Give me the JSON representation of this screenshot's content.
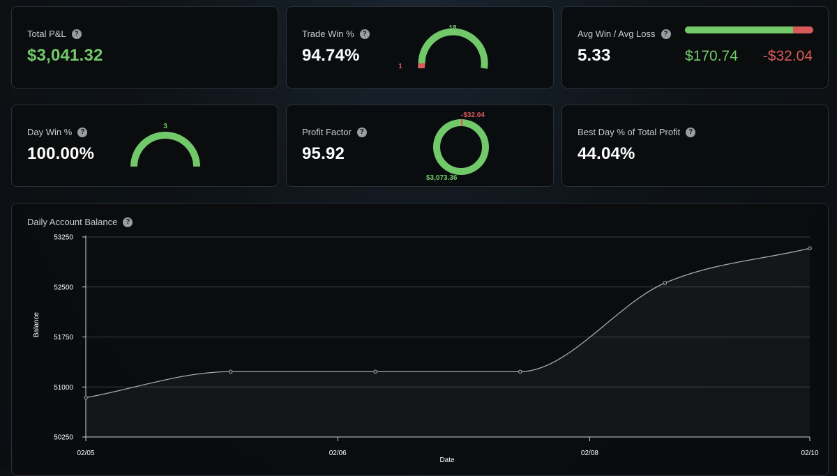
{
  "colors": {
    "green": "#72c96a",
    "red": "#d95a5a",
    "line": "#a8aaad"
  },
  "total_pnl": {
    "label": "Total P&L",
    "value": "$3,041.32"
  },
  "trade_win": {
    "label": "Trade Win %",
    "value": "94.74%",
    "wins": "18",
    "losses": "1",
    "win_fraction": 0.9474
  },
  "avg_win_loss": {
    "label": "Avg Win / Avg Loss",
    "value": "5.33",
    "avg_win": "$170.74",
    "avg_loss": "-$32.04",
    "win_share": 0.842
  },
  "day_win": {
    "label": "Day Win %",
    "value": "100.00%",
    "wins": "3",
    "win_fraction": 1.0
  },
  "profit_factor": {
    "label": "Profit Factor",
    "value": "95.92",
    "gross_profit": "$3,073.36",
    "gross_loss": "-$32.04",
    "loss_fraction": 0.0103
  },
  "best_day": {
    "label": "Best Day % of Total Profit",
    "value": "44.04%"
  },
  "balance_chart": {
    "title": "Daily Account Balance"
  },
  "chart_data": {
    "type": "area",
    "title": "Daily Account Balance",
    "xlabel": "Date",
    "ylabel": "Balance",
    "ylim": [
      50250,
      53250
    ],
    "yticks": [
      50250,
      51000,
      51750,
      52500,
      53250
    ],
    "xlim": [
      0,
      5
    ],
    "xticks": [
      {
        "x": 0,
        "label": "02/05"
      },
      {
        "x": 1.74,
        "label": "02/06"
      },
      {
        "x": 3.48,
        "label": "02/08"
      },
      {
        "x": 5,
        "label": "02/10"
      }
    ],
    "points": [
      {
        "x": 0,
        "y": 50840
      },
      {
        "x": 1.0,
        "y": 51230
      },
      {
        "x": 2.0,
        "y": 51230
      },
      {
        "x": 3.0,
        "y": 51230
      },
      {
        "x": 4.0,
        "y": 52560
      },
      {
        "x": 5.0,
        "y": 53080
      }
    ]
  }
}
